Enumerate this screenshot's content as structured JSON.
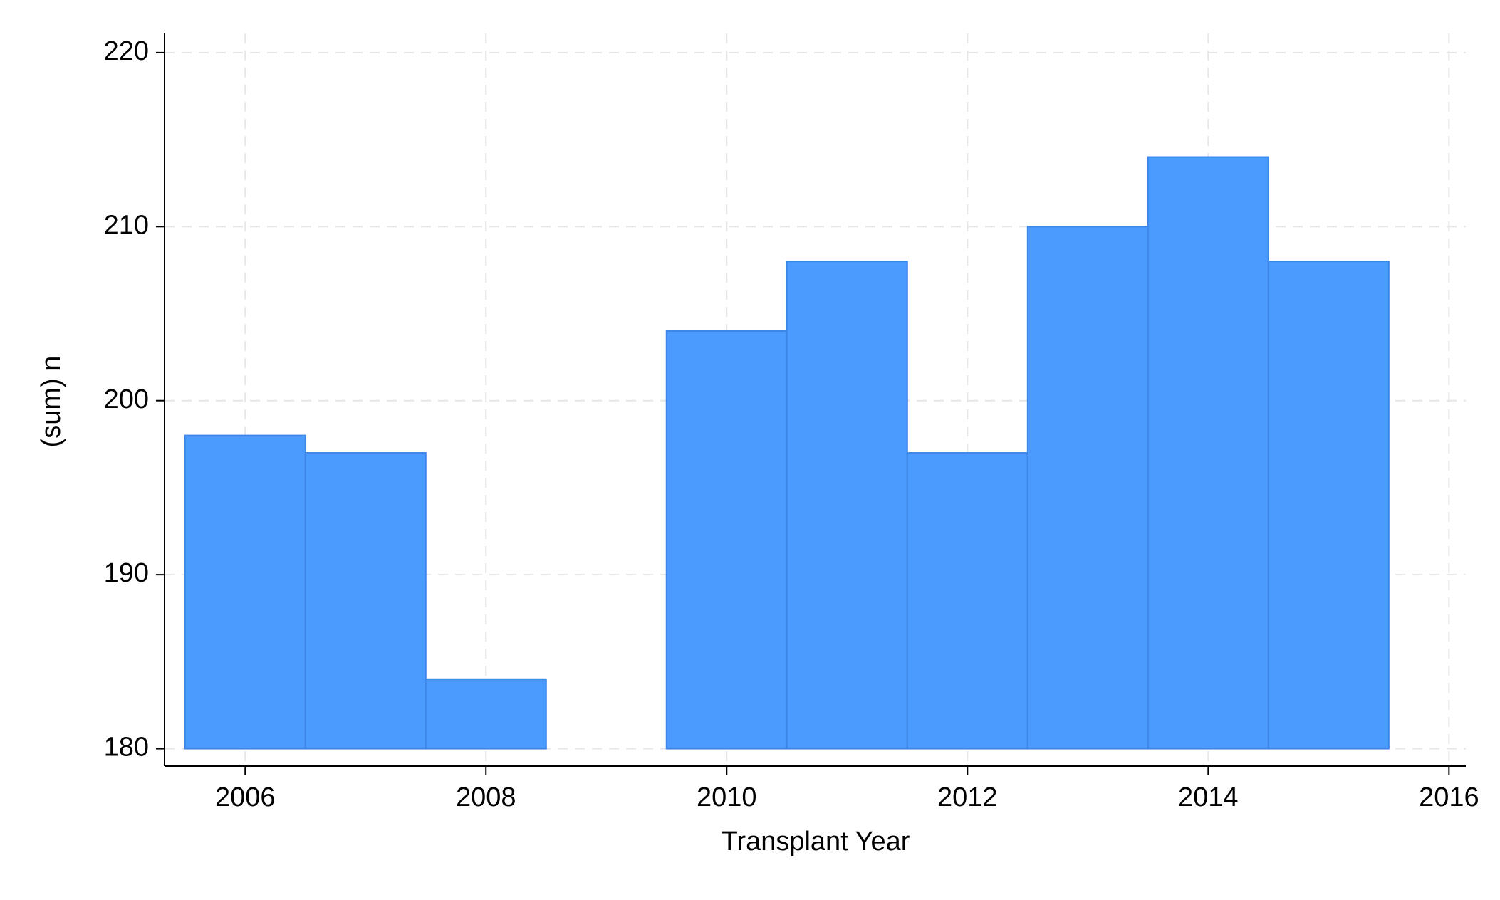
{
  "chart_data": {
    "type": "bar",
    "x_label": "Transplant Year",
    "y_label": "(sum) n",
    "x": [
      2006,
      2007,
      2008,
      2010,
      2011,
      2012,
      2013,
      2014,
      2015
    ],
    "values": [
      198,
      197,
      184,
      204,
      208,
      197,
      210,
      214,
      208
    ],
    "color": "#4a9bfd",
    "xlim": [
      2005.33,
      2016.14
    ],
    "xticks": [
      2006,
      2008,
      2010,
      2012,
      2014,
      2016
    ],
    "ylim": [
      179,
      221.1
    ],
    "yticks": [
      180,
      190,
      200,
      210,
      220
    ],
    "grid": true
  }
}
